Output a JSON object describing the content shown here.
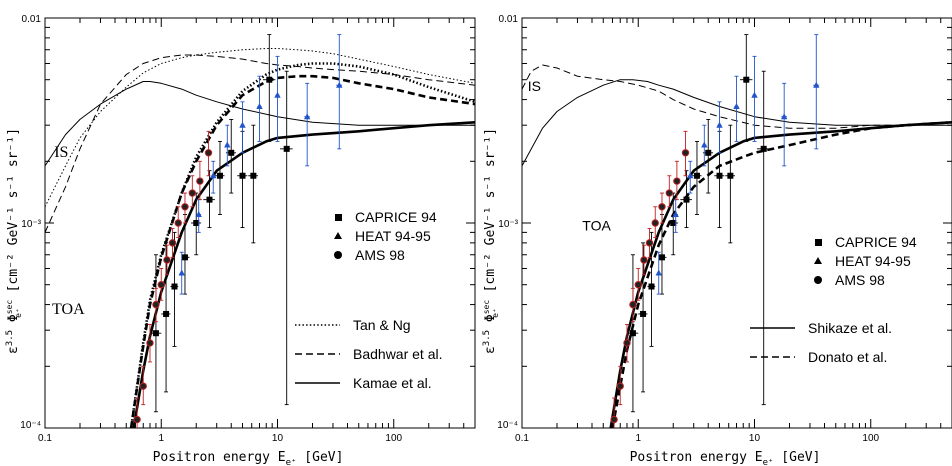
{
  "chart_data": [
    {
      "type": "line",
      "panel": "left",
      "xlabel": "Positron energy E",
      "xlabel_sub": "e⁺",
      "xlabel_unit": "[GeV]",
      "ylabel_parts": [
        "ε",
        "3.5",
        " Φ",
        "sec",
        "e⁺",
        "  [cm⁻² GeV⁻¹ s⁻¹ sr⁻¹]"
      ],
      "xscale": "log",
      "yscale": "log",
      "xlim": [
        0.1,
        500
      ],
      "ylim": [
        0.0001,
        0.01
      ],
      "xticks": [
        {
          "v": 0.1,
          "t": "0.1"
        },
        {
          "v": 1,
          "t": "1"
        },
        {
          "v": 10,
          "t": "10"
        },
        {
          "v": 100,
          "t": "100"
        }
      ],
      "yticks": [
        {
          "v": 0.0001,
          "t": "10⁻⁴"
        },
        {
          "v": 0.001,
          "t": "10⁻³"
        },
        {
          "v": 0.01,
          "t": "0.01"
        }
      ],
      "annotations": [
        {
          "text": "IS",
          "x": 0.12,
          "y": 0.0021
        },
        {
          "text": "TOA",
          "x": 0.115,
          "y": 0.00036
        }
      ],
      "legend_markers": [
        {
          "name": "CAPRICE 94",
          "marker": "square"
        },
        {
          "name": "HEAT 94-95",
          "marker": "triangle"
        },
        {
          "name": "AMS 98",
          "marker": "circle"
        }
      ],
      "legend_lines": [
        {
          "name": "Tan & Ng",
          "style": "dotted"
        },
        {
          "name": "Badhwar et al.",
          "style": "dashed"
        },
        {
          "name": "Kamae et al.",
          "style": "solid"
        }
      ],
      "series": [
        {
          "name": "Tan & Ng",
          "role": "IS",
          "style": "dotted",
          "width": 1,
          "x": [
            0.1,
            0.15,
            0.2,
            0.3,
            0.5,
            0.7,
            1,
            1.5,
            2,
            3,
            5,
            8,
            10,
            15,
            20,
            30,
            50,
            100,
            200,
            500
          ],
          "y": [
            0.0012,
            0.0019,
            0.0026,
            0.0035,
            0.0046,
            0.0054,
            0.006,
            0.0064,
            0.0066,
            0.0068,
            0.007,
            0.0071,
            0.0071,
            0.007,
            0.0069,
            0.0067,
            0.0063,
            0.0058,
            0.0053,
            0.0048
          ]
        },
        {
          "name": "Tan & Ng",
          "role": "TOA",
          "style": "dotted",
          "width": 2.6,
          "x": [
            0.55,
            0.7,
            0.8,
            1,
            1.5,
            2,
            3,
            5,
            8,
            10,
            15,
            20,
            30,
            50,
            100,
            200,
            500
          ],
          "y": [
            0.0001,
            0.00026,
            0.00042,
            0.0007,
            0.0014,
            0.0021,
            0.0031,
            0.0044,
            0.0053,
            0.0056,
            0.0059,
            0.006,
            0.006,
            0.0058,
            0.0053,
            0.0046,
            0.0039
          ]
        },
        {
          "name": "Badhwar et al.",
          "role": "IS",
          "style": "dashed",
          "width": 1,
          "x": [
            0.1,
            0.15,
            0.2,
            0.3,
            0.5,
            0.7,
            1,
            1.5,
            2,
            3,
            5,
            8,
            10,
            15,
            20,
            30,
            50,
            100,
            200,
            500
          ],
          "y": [
            0.0009,
            0.0015,
            0.0023,
            0.0038,
            0.0053,
            0.006,
            0.0064,
            0.0066,
            0.0066,
            0.0065,
            0.0063,
            0.006,
            0.0059,
            0.0058,
            0.0057,
            0.0056,
            0.0055,
            0.0053,
            0.005,
            0.0047
          ]
        },
        {
          "name": "Badhwar et al.",
          "role": "TOA",
          "style": "dashed",
          "width": 2.6,
          "x": [
            0.55,
            0.7,
            0.8,
            1,
            1.5,
            2,
            3,
            5,
            8,
            10,
            15,
            20,
            30,
            50,
            100,
            200,
            500
          ],
          "y": [
            0.0001,
            0.00025,
            0.0004,
            0.00068,
            0.0014,
            0.002,
            0.003,
            0.0042,
            0.0049,
            0.0051,
            0.0052,
            0.0052,
            0.0051,
            0.0048,
            0.0045,
            0.0041,
            0.0038
          ]
        },
        {
          "name": "Kamae et al.",
          "role": "IS",
          "style": "solid",
          "width": 1,
          "x": [
            0.1,
            0.15,
            0.2,
            0.3,
            0.5,
            0.7,
            0.8,
            1,
            1.5,
            2,
            3,
            5,
            10,
            20,
            50,
            100,
            200,
            500
          ],
          "y": [
            0.0019,
            0.0027,
            0.0032,
            0.0038,
            0.0045,
            0.0049,
            0.0049,
            0.0048,
            0.0045,
            0.0042,
            0.0039,
            0.0036,
            0.0033,
            0.0031,
            0.003,
            0.003,
            0.003,
            0.003
          ]
        },
        {
          "name": "Kamae et al.",
          "role": "TOA",
          "style": "solid",
          "width": 2.6,
          "x": [
            0.58,
            0.7,
            0.8,
            1,
            1.5,
            2,
            3,
            5,
            8,
            10,
            20,
            50,
            100,
            200,
            500
          ],
          "y": [
            0.0001,
            0.00019,
            0.00028,
            0.00046,
            0.0009,
            0.0013,
            0.0018,
            0.0022,
            0.0025,
            0.0026,
            0.0027,
            0.0028,
            0.0029,
            0.003,
            0.0031
          ]
        }
      ]
    },
    {
      "type": "line",
      "panel": "right",
      "xlabel": "Positron energy E",
      "xlabel_sub": "e⁺",
      "xlabel_unit": "[GeV]",
      "ylabel_parts": [
        "ε",
        "3.5",
        " Φ",
        "sec",
        "e⁺",
        "  [cm⁻² GeV⁻¹ s⁻¹ sr⁻¹]"
      ],
      "xscale": "log",
      "yscale": "log",
      "xlim": [
        0.1,
        500
      ],
      "ylim": [
        0.0001,
        0.01
      ],
      "xticks": [
        {
          "v": 0.1,
          "t": "0.1"
        },
        {
          "v": 1,
          "t": "1"
        },
        {
          "v": 10,
          "t": "10"
        },
        {
          "v": 100,
          "t": "100"
        }
      ],
      "yticks": [
        {
          "v": 0.0001,
          "t": "10⁻⁴"
        },
        {
          "v": 0.001,
          "t": "10⁻³"
        },
        {
          "v": 0.01,
          "t": "0.01"
        }
      ],
      "annotations": [
        {
          "text": "IS",
          "x": 0.112,
          "y": 0.0044
        },
        {
          "text": "TOA",
          "x": 0.33,
          "y": 0.00092
        }
      ],
      "legend_markers": [
        {
          "name": "CAPRICE 94",
          "marker": "square"
        },
        {
          "name": "HEAT 94-95",
          "marker": "triangle"
        },
        {
          "name": "AMS 98",
          "marker": "circle"
        }
      ],
      "legend_lines": [
        {
          "name": "Shikaze et al.",
          "style": "solid"
        },
        {
          "name": "Donato et al.",
          "style": "dashed"
        }
      ],
      "series": [
        {
          "name": "Shikaze et al.",
          "role": "IS",
          "style": "solid",
          "width": 1,
          "x": [
            0.1,
            0.15,
            0.2,
            0.3,
            0.5,
            0.7,
            0.9,
            1.2,
            1.5,
            2,
            3,
            5,
            10,
            20,
            50,
            100,
            200,
            500
          ],
          "y": [
            0.0019,
            0.0029,
            0.0035,
            0.0041,
            0.0047,
            0.005,
            0.005,
            0.0049,
            0.0047,
            0.0045,
            0.0041,
            0.0037,
            0.0033,
            0.0031,
            0.003,
            0.003,
            0.003,
            0.003
          ]
        },
        {
          "name": "Shikaze et al.",
          "role": "TOA",
          "style": "solid",
          "width": 2.6,
          "x": [
            0.58,
            0.7,
            0.8,
            1,
            1.5,
            2,
            3,
            5,
            8,
            10,
            20,
            50,
            100,
            200,
            500
          ],
          "y": [
            0.0001,
            0.00019,
            0.00028,
            0.00046,
            0.0009,
            0.0013,
            0.0018,
            0.0022,
            0.0025,
            0.0026,
            0.0027,
            0.0028,
            0.0029,
            0.003,
            0.0031
          ]
        },
        {
          "name": "Donato et al.",
          "role": "IS",
          "style": "dashed",
          "width": 1,
          "x": [
            0.1,
            0.12,
            0.15,
            0.2,
            0.3,
            0.5,
            0.7,
            1,
            1.5,
            2,
            3,
            5,
            10,
            20,
            50,
            100,
            200,
            500
          ],
          "y": [
            0.0045,
            0.0055,
            0.0059,
            0.0057,
            0.0052,
            0.005,
            0.0049,
            0.0047,
            0.0044,
            0.004,
            0.0036,
            0.0033,
            0.003,
            0.0029,
            0.0029,
            0.003,
            0.003,
            0.0031
          ]
        },
        {
          "name": "Donato et al.",
          "role": "TOA",
          "style": "dashed",
          "width": 2.6,
          "x": [
            0.6,
            0.7,
            0.8,
            1,
            1.5,
            2,
            3,
            5,
            8,
            10,
            20,
            50,
            100,
            200,
            500
          ],
          "y": [
            0.0001,
            0.00016,
            0.00024,
            0.0004,
            0.00078,
            0.0011,
            0.0015,
            0.0019,
            0.0021,
            0.0022,
            0.0024,
            0.0027,
            0.0029,
            0.003,
            0.0031
          ]
        }
      ]
    }
  ],
  "datasets": [
    {
      "name": "CAPRICE 94",
      "marker": "square",
      "color": "#000000",
      "points": [
        {
          "x": 0.9,
          "y": 0.00029,
          "ylo": 0.00012,
          "yhi": 0.0007,
          "xlo": 0.8,
          "xhi": 1.0
        },
        {
          "x": 1.1,
          "y": 0.00036,
          "ylo": 0.00015,
          "yhi": 0.0008,
          "xlo": 1.0,
          "xhi": 1.2
        },
        {
          "x": 1.3,
          "y": 0.00049,
          "ylo": 0.00025,
          "yhi": 0.0009,
          "xlo": 1.2,
          "xhi": 1.4
        },
        {
          "x": 1.6,
          "y": 0.00068,
          "ylo": 0.00045,
          "yhi": 0.0011,
          "xlo": 1.5,
          "xhi": 1.75
        },
        {
          "x": 2.0,
          "y": 0.001,
          "ylo": 0.0007,
          "yhi": 0.0014,
          "xlo": 1.8,
          "xhi": 2.2
        },
        {
          "x": 2.6,
          "y": 0.0013,
          "ylo": 0.00095,
          "yhi": 0.0018,
          "xlo": 2.3,
          "xhi": 2.9
        },
        {
          "x": 3.2,
          "y": 0.0017,
          "ylo": 0.0011,
          "yhi": 0.0025,
          "xlo": 2.9,
          "xhi": 3.5
        },
        {
          "x": 4.0,
          "y": 0.0022,
          "ylo": 0.0014,
          "yhi": 0.0032,
          "xlo": 3.6,
          "xhi": 4.4
        },
        {
          "x": 5.0,
          "y": 0.0017,
          "ylo": 0.00095,
          "yhi": 0.0028,
          "xlo": 4.5,
          "xhi": 5.5
        },
        {
          "x": 6.2,
          "y": 0.0017,
          "ylo": 0.0008,
          "yhi": 0.003,
          "xlo": 5.6,
          "xhi": 6.8
        },
        {
          "x": 8.5,
          "y": 0.005,
          "ylo": 0.0025,
          "yhi": 0.0083,
          "xlo": 7.5,
          "xhi": 9.6
        },
        {
          "x": 12,
          "y": 0.0023,
          "ylo": 0.00013,
          "yhi": 0.0055,
          "xlo": 10.5,
          "xhi": 13.5
        }
      ]
    },
    {
      "name": "HEAT 94-95",
      "marker": "triangle",
      "color": "#2255cc",
      "points": [
        {
          "x": 1.5,
          "y": 0.00057,
          "ylo": 0.00045,
          "yhi": 0.00072,
          "xlo": 1.45,
          "xhi": 1.55
        },
        {
          "x": 2.1,
          "y": 0.0011,
          "ylo": 0.0009,
          "yhi": 0.0013,
          "xlo": 2.0,
          "xhi": 2.2
        },
        {
          "x": 2.8,
          "y": 0.0017,
          "ylo": 0.0014,
          "yhi": 0.002,
          "xlo": 2.7,
          "xhi": 2.9
        },
        {
          "x": 3.7,
          "y": 0.0024,
          "ylo": 0.0019,
          "yhi": 0.003,
          "xlo": 3.55,
          "xhi": 3.85
        },
        {
          "x": 5.0,
          "y": 0.003,
          "ylo": 0.0022,
          "yhi": 0.0039,
          "xlo": 4.8,
          "xhi": 5.2
        },
        {
          "x": 7.0,
          "y": 0.0037,
          "ylo": 0.0025,
          "yhi": 0.0052,
          "xlo": 6.7,
          "xhi": 7.3
        },
        {
          "x": 10,
          "y": 0.0042,
          "ylo": 0.0025,
          "yhi": 0.0065,
          "xlo": 9.6,
          "xhi": 10.4
        },
        {
          "x": 18,
          "y": 0.0033,
          "ylo": 0.0019,
          "yhi": 0.0048,
          "xlo": 17,
          "xhi": 19
        },
        {
          "x": 34,
          "y": 0.0047,
          "ylo": 0.0023,
          "yhi": 0.0083,
          "xlo": 32,
          "xhi": 36
        }
      ]
    },
    {
      "name": "AMS 98",
      "marker": "circle",
      "color": "#000000",
      "errcolor": "#c02020",
      "points": [
        {
          "x": 0.62,
          "y": 0.00011,
          "ylo": 9e-05,
          "yhi": 0.00014,
          "xlo": 0.59,
          "xhi": 0.65
        },
        {
          "x": 0.7,
          "y": 0.00016,
          "ylo": 0.00013,
          "yhi": 0.0002,
          "xlo": 0.67,
          "xhi": 0.73
        },
        {
          "x": 0.8,
          "y": 0.00026,
          "ylo": 0.00021,
          "yhi": 0.00032,
          "xlo": 0.76,
          "xhi": 0.84
        },
        {
          "x": 0.9,
          "y": 0.0004,
          "ylo": 0.00033,
          "yhi": 0.00048,
          "xlo": 0.85,
          "xhi": 0.95
        },
        {
          "x": 1.0,
          "y": 0.0005,
          "ylo": 0.00042,
          "yhi": 0.0006,
          "xlo": 0.95,
          "xhi": 1.05
        },
        {
          "x": 1.12,
          "y": 0.00066,
          "ylo": 0.00056,
          "yhi": 0.00078,
          "xlo": 1.06,
          "xhi": 1.18
        },
        {
          "x": 1.25,
          "y": 0.0008,
          "ylo": 0.00068,
          "yhi": 0.00094,
          "xlo": 1.18,
          "xhi": 1.32
        },
        {
          "x": 1.4,
          "y": 0.001,
          "ylo": 0.00085,
          "yhi": 0.0012,
          "xlo": 1.33,
          "xhi": 1.47
        },
        {
          "x": 1.6,
          "y": 0.0012,
          "ylo": 0.001,
          "yhi": 0.0014,
          "xlo": 1.5,
          "xhi": 1.7
        },
        {
          "x": 1.85,
          "y": 0.0014,
          "ylo": 0.0012,
          "yhi": 0.0017,
          "xlo": 1.75,
          "xhi": 1.95
        },
        {
          "x": 2.15,
          "y": 0.0016,
          "ylo": 0.0013,
          "yhi": 0.002,
          "xlo": 2.0,
          "xhi": 2.3
        },
        {
          "x": 2.55,
          "y": 0.0022,
          "ylo": 0.0017,
          "yhi": 0.0028,
          "xlo": 2.4,
          "xhi": 2.7
        }
      ]
    }
  ]
}
